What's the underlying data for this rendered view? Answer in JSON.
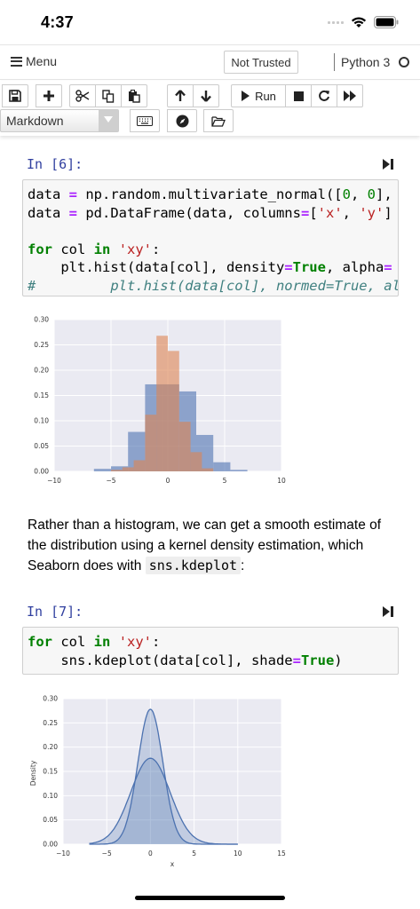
{
  "status_bar": {
    "time": "4:37"
  },
  "header": {
    "menu_label": "Menu",
    "trust_label": "Not Trusted",
    "kernel_name": "Python 3"
  },
  "toolbar": {
    "run_label": "Run",
    "cell_type": "Markdown"
  },
  "cells": [
    {
      "prompt": "In [6]:",
      "code_lines": [
        "data = np.random.multivariate_normal([0, 0],",
        "data = pd.DataFrame(data, columns=['x', 'y']",
        "",
        "for col in 'xy':",
        "    plt.hist(data[col], density=True, alpha=",
        "#         plt.hist(data[col], normed=True, al"
      ]
    },
    {
      "prompt": "In [7]:",
      "code_lines": [
        "for col in 'xy':",
        "    sns.kdeplot(data[col], shade=True)"
      ]
    }
  ],
  "markdown": {
    "text_before": "Rather than a histogram, we can get a smooth estimate of the distribution using a kernel density estimation, which Seaborn does with ",
    "code": "sns.kdeplot",
    "text_after": ":"
  },
  "chart_data": [
    {
      "type": "bar",
      "xlim": [
        -10,
        10
      ],
      "ylim": [
        0,
        0.3
      ],
      "xticks": [
        "−10",
        "−5",
        "0",
        "5",
        "10"
      ],
      "yticks": [
        "0.00",
        "0.05",
        "0.10",
        "0.15",
        "0.20",
        "0.25",
        "0.30"
      ],
      "grid": true,
      "colors": {
        "x": "#4c72b0",
        "y": "#dd8452"
      },
      "series": [
        {
          "bins": [
            [
              -6.5,
              -5.0,
              0.005
            ],
            [
              -5.0,
              -3.5,
              0.01
            ],
            [
              -3.5,
              -2.0,
              0.078
            ],
            [
              -2.0,
              -0.5,
              0.172
            ],
            [
              -0.5,
              1.0,
              0.172
            ],
            [
              1.0,
              2.5,
              0.158
            ],
            [
              2.5,
              4.0,
              0.072
            ],
            [
              4.0,
              5.5,
              0.018
            ],
            [
              5.5,
              7.0,
              0.003
            ]
          ]
        },
        {
          "bins": [
            [
              -5.0,
              -4.0,
              0.003
            ],
            [
              -4.0,
              -3.0,
              0.008
            ],
            [
              -3.0,
              -2.0,
              0.022
            ],
            [
              -2.0,
              -1.0,
              0.112
            ],
            [
              -1.0,
              0.0,
              0.268
            ],
            [
              0.0,
              1.0,
              0.238
            ],
            [
              1.0,
              2.0,
              0.098
            ],
            [
              2.0,
              3.0,
              0.038
            ],
            [
              3.0,
              4.0,
              0.006
            ]
          ]
        }
      ]
    },
    {
      "type": "area",
      "xlabel": "x",
      "ylabel": "Density",
      "xlim": [
        -10,
        15
      ],
      "ylim": [
        0,
        0.3
      ],
      "xticks": [
        "−10",
        "−5",
        "0",
        "5",
        "10",
        "15"
      ],
      "yticks": [
        "0.00",
        "0.05",
        "0.10",
        "0.15",
        "0.20",
        "0.25",
        "0.30"
      ],
      "grid": true,
      "colors": {
        "x": "#4c72b0",
        "y": "#4c72b0"
      },
      "series": [
        {
          "mean": 0,
          "sd": 2.25,
          "peak": 0.177
        },
        {
          "mean": 0,
          "sd": 1.43,
          "peak": 0.278
        }
      ]
    }
  ]
}
